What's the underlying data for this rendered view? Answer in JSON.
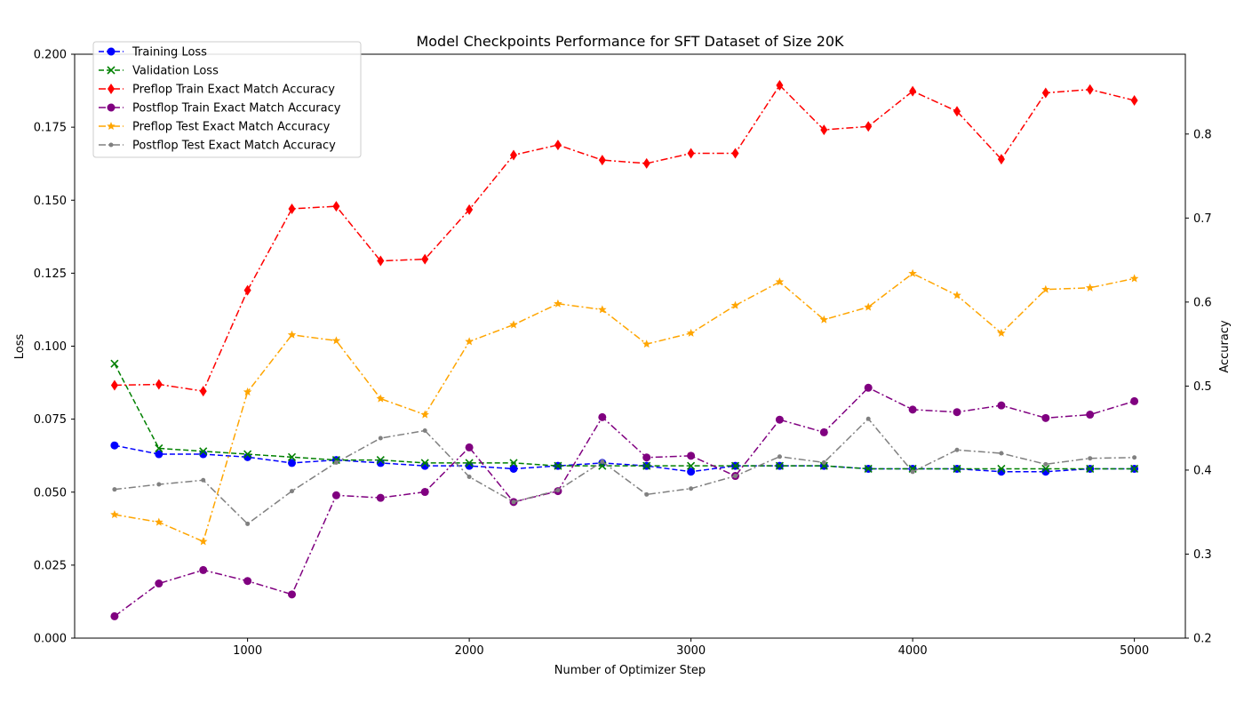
{
  "chart_data": {
    "type": "line",
    "title": "Model Checkpoints Performance for SFT Dataset of Size 20K",
    "xlabel": "Number of Optimizer Step",
    "ylabel_left": "Loss",
    "ylabel_right": "Accuracy",
    "xlim": [
      220,
      5230
    ],
    "ylim_left": [
      0,
      0.2
    ],
    "ylim_right": [
      0.2,
      0.895
    ],
    "x_ticks": [
      1000,
      2000,
      3000,
      4000,
      5000
    ],
    "x_tick_labels": [
      "1000",
      "2000",
      "3000",
      "4000",
      "5000"
    ],
    "left_ticks": [
      0,
      0.025,
      0.05,
      0.075,
      0.1,
      0.125,
      0.15,
      0.175,
      0.2
    ],
    "left_tick_labels": [
      "0.000",
      "0.025",
      "0.050",
      "0.075",
      "0.100",
      "0.125",
      "0.150",
      "0.175",
      "0.200"
    ],
    "right_ticks": [
      0.2,
      0.3,
      0.4,
      0.5,
      0.6,
      0.7,
      0.8
    ],
    "right_tick_labels": [
      "0.2",
      "0.3",
      "0.4",
      "0.5",
      "0.6",
      "0.7",
      "0.8"
    ],
    "grid": false,
    "legend_position": "top-left",
    "x": [
      400,
      600,
      800,
      1000,
      1200,
      1400,
      1600,
      1800,
      2000,
      2200,
      2400,
      2600,
      2800,
      3000,
      3200,
      3400,
      3600,
      3800,
      4000,
      4200,
      4400,
      4600,
      4800,
      5000
    ],
    "series": [
      {
        "name": "Training Loss",
        "axis": "left",
        "color": "#0000ff",
        "line_style": "dashed",
        "marker": "circle",
        "values": [
          0.066,
          0.063,
          0.063,
          0.062,
          0.06,
          0.061,
          0.06,
          0.059,
          0.059,
          0.058,
          0.059,
          0.06,
          0.059,
          0.057,
          0.059,
          0.059,
          0.059,
          0.058,
          0.058,
          0.058,
          0.057,
          0.057,
          0.058,
          0.058
        ]
      },
      {
        "name": "Validation Loss",
        "axis": "left",
        "color": "#008000",
        "line_style": "dashed",
        "marker": "x",
        "values": [
          0.094,
          0.065,
          0.064,
          0.063,
          0.062,
          0.061,
          0.061,
          0.06,
          0.06,
          0.06,
          0.059,
          0.059,
          0.059,
          0.059,
          0.059,
          0.059,
          0.059,
          0.058,
          0.058,
          0.058,
          0.058,
          0.058,
          0.058,
          0.058
        ]
      },
      {
        "name": "Preflop Train Exact Match Accuracy",
        "axis": "right",
        "color": "#ff0000",
        "line_style": "dashdot",
        "marker": "diamond",
        "values": [
          0.501,
          0.502,
          0.494,
          0.614,
          0.711,
          0.714,
          0.649,
          0.651,
          0.71,
          0.775,
          0.787,
          0.769,
          0.765,
          0.777,
          0.777,
          0.858,
          0.805,
          0.809,
          0.851,
          0.827,
          0.77,
          0.849,
          0.853,
          0.84
        ]
      },
      {
        "name": "Postflop Train Exact Match Accuracy",
        "axis": "right",
        "color": "#800080",
        "line_style": "dashdot",
        "marker": "circle",
        "values": [
          0.226,
          0.265,
          0.281,
          0.268,
          0.252,
          0.37,
          0.367,
          0.374,
          0.427,
          0.362,
          0.375,
          0.463,
          0.415,
          0.417,
          0.393,
          0.46,
          0.445,
          0.498,
          0.472,
          0.469,
          0.477,
          0.462,
          0.466,
          0.482
        ]
      },
      {
        "name": "Preflop Test Exact Match Accuracy",
        "axis": "right",
        "color": "#ffa500",
        "line_style": "dashdot",
        "marker": "star",
        "values": [
          0.347,
          0.338,
          0.315,
          0.493,
          0.561,
          0.554,
          0.485,
          0.466,
          0.553,
          0.573,
          0.598,
          0.591,
          0.55,
          0.563,
          0.596,
          0.624,
          0.579,
          0.594,
          0.634,
          0.608,
          0.563,
          0.615,
          0.617,
          0.628
        ]
      },
      {
        "name": "Postflop Test Exact Match Accuracy",
        "axis": "right",
        "color": "#808080",
        "line_style": "dashdot",
        "marker": "dot",
        "values": [
          0.377,
          0.383,
          0.388,
          0.336,
          0.375,
          0.409,
          0.438,
          0.447,
          0.392,
          0.362,
          0.376,
          0.41,
          0.371,
          0.378,
          0.393,
          0.416,
          0.409,
          0.461,
          0.398,
          0.424,
          0.42,
          0.407,
          0.414,
          0.415
        ]
      }
    ]
  }
}
